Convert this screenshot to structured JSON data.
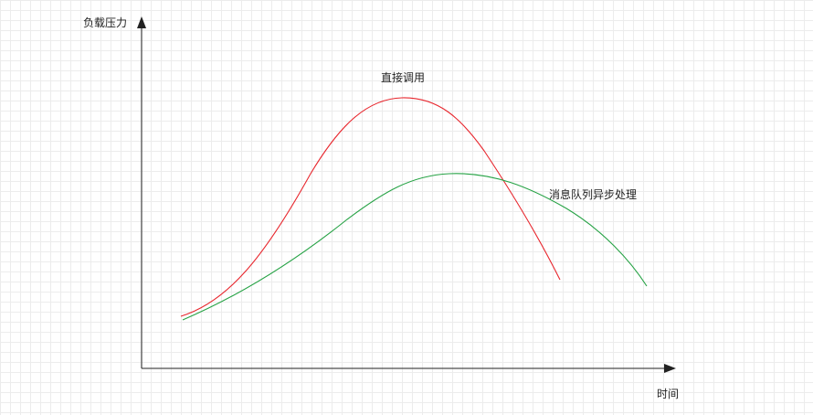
{
  "axes": {
    "y_label": "负载压力",
    "x_label": "时间"
  },
  "curves": [
    {
      "name": "直接调用",
      "color": "#e8262d"
    },
    {
      "name": "消息队列异步处理",
      "color": "#25a244"
    }
  ],
  "axis_color": "#222222"
}
